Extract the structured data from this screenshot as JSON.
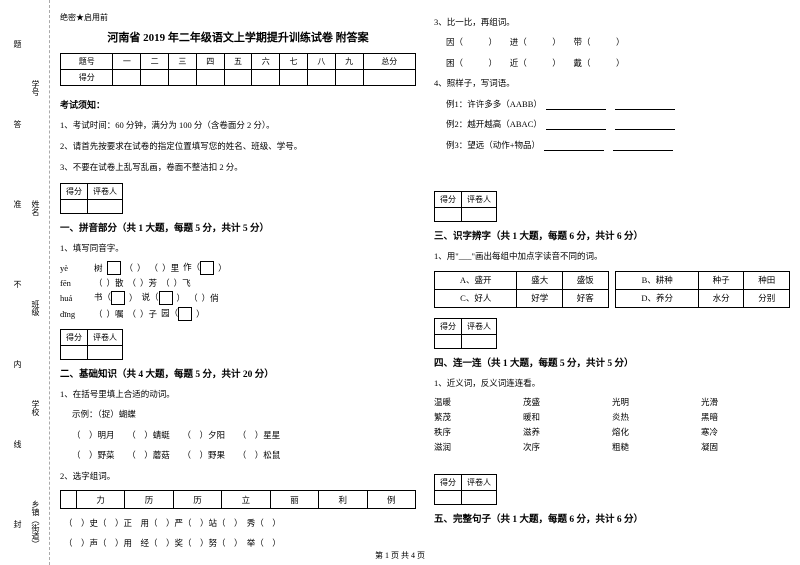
{
  "binding": {
    "labels": [
      "乡镇（街道）",
      "学校",
      "班级",
      "姓名",
      "学号"
    ],
    "marks": [
      "封",
      "线",
      "内",
      "不",
      "准",
      "答",
      "题"
    ]
  },
  "secret": "绝密★启用前",
  "title": "河南省 2019 年二年级语文上学期提升训练试卷 附答案",
  "header_table": {
    "r1": [
      "题号",
      "一",
      "二",
      "三",
      "四",
      "五",
      "六",
      "七",
      "八",
      "九",
      "总分"
    ],
    "r2": [
      "得分",
      "",
      "",
      "",
      "",
      "",
      "",
      "",
      "",
      "",
      ""
    ]
  },
  "notice": {
    "h": "考试须知：",
    "lines": [
      "1、考试时间：60 分钟，满分为 100 分（含卷面分 2 分）。",
      "2、请首先按要求在试卷的指定位置填写您的姓名、班级、学号。",
      "3、不要在试卷上乱写乱画，卷面不整洁扣 2 分。"
    ]
  },
  "scorebox": {
    "c1": "得分",
    "c2": "评卷人"
  },
  "sections": {
    "s1": "一、拼音部分（共 1 大题，每题 5 分，共计 5 分）",
    "s2": "二、基础知识（共 4 大题，每题 5 分，共计 20 分）",
    "s3": "三、识字辨字（共 1 大题，每题 6 分，共计 6 分）",
    "s4": "四、连一连（共 1 大题，每题 5 分，共计 5 分）",
    "s5": "五、完整句子（共 1 大题，每题 6 分，共计 6 分）"
  },
  "q1": {
    "stem": "1、填写同音字。",
    "rows": [
      {
        "py": "yè",
        "cells": [
          "树",
          "（",
          "）",
          "（",
          "）里",
          "作（",
          "）"
        ]
      },
      {
        "py": "fēn",
        "cells": [
          "（",
          "）散",
          "（",
          "）芳",
          "（",
          "）飞",
          ""
        ]
      },
      {
        "py": "huá",
        "cells": [
          "书（",
          "）",
          "说（",
          "）",
          "（",
          "）俏",
          ""
        ]
      },
      {
        "py": "dīng",
        "cells": [
          "（",
          "）嘱",
          "（",
          "）子",
          "园（",
          "）",
          ""
        ]
      }
    ]
  },
  "q2_1": {
    "stem": "1、在括号里填上合适的动词。",
    "ex": "示例：（捉）蝴蝶",
    "lines": [
      "（　）明月　　（　）蜻蜓　　（　）夕阳　　（　）星星",
      "（　）野菜　　（　）蘑菇　　（　）野果　　（　）松鼠"
    ]
  },
  "q2_2": {
    "stem": "2、选字组词。",
    "row1": [
      "",
      "力",
      "历",
      "历",
      "立",
      "丽",
      "利",
      "例"
    ],
    "line1": "（　）史（　）正　用（　）严（　）站（　）　秀（　）",
    "line2": "（　）声（　）用　经（　）奖（　）努（　）　举（　）"
  },
  "q2_3": {
    "stem": "3、比一比，再组词。",
    "lines": [
      "因（　　　）　　进（　　　）　　带（　　　）",
      "困（　　　）　　近（　　　）　　戴（　　　）"
    ]
  },
  "q2_4": {
    "stem": "4、照样子，写词语。",
    "lines": [
      "例1：许许多多（AABB）",
      "例2：越开越高（ABAC）",
      "例3：望远（动作+物品）"
    ]
  },
  "q3": {
    "stem": "1、用\"___\"画出每组中加点字读音不同的词。",
    "rows": [
      [
        "A、盛开",
        "盛大",
        "盛饭",
        "",
        "B、耕种",
        "种子",
        "种田"
      ],
      [
        "C、好人",
        "好学",
        "好客",
        "",
        "D、养分",
        "水分",
        "分别"
      ]
    ]
  },
  "q4": {
    "stem": "1、近义词，反义词连连看。",
    "cols": [
      [
        "温暖",
        "繁茂",
        "秩序",
        "滋润"
      ],
      [
        "茂盛",
        "暖和",
        "滋养",
        "次序"
      ],
      [
        "光明",
        "炎热",
        "熔化",
        "粗糙"
      ],
      [
        "光滑",
        "黑暗",
        "寒冷",
        "凝固"
      ]
    ]
  },
  "footer": "第 1 页 共 4 页"
}
